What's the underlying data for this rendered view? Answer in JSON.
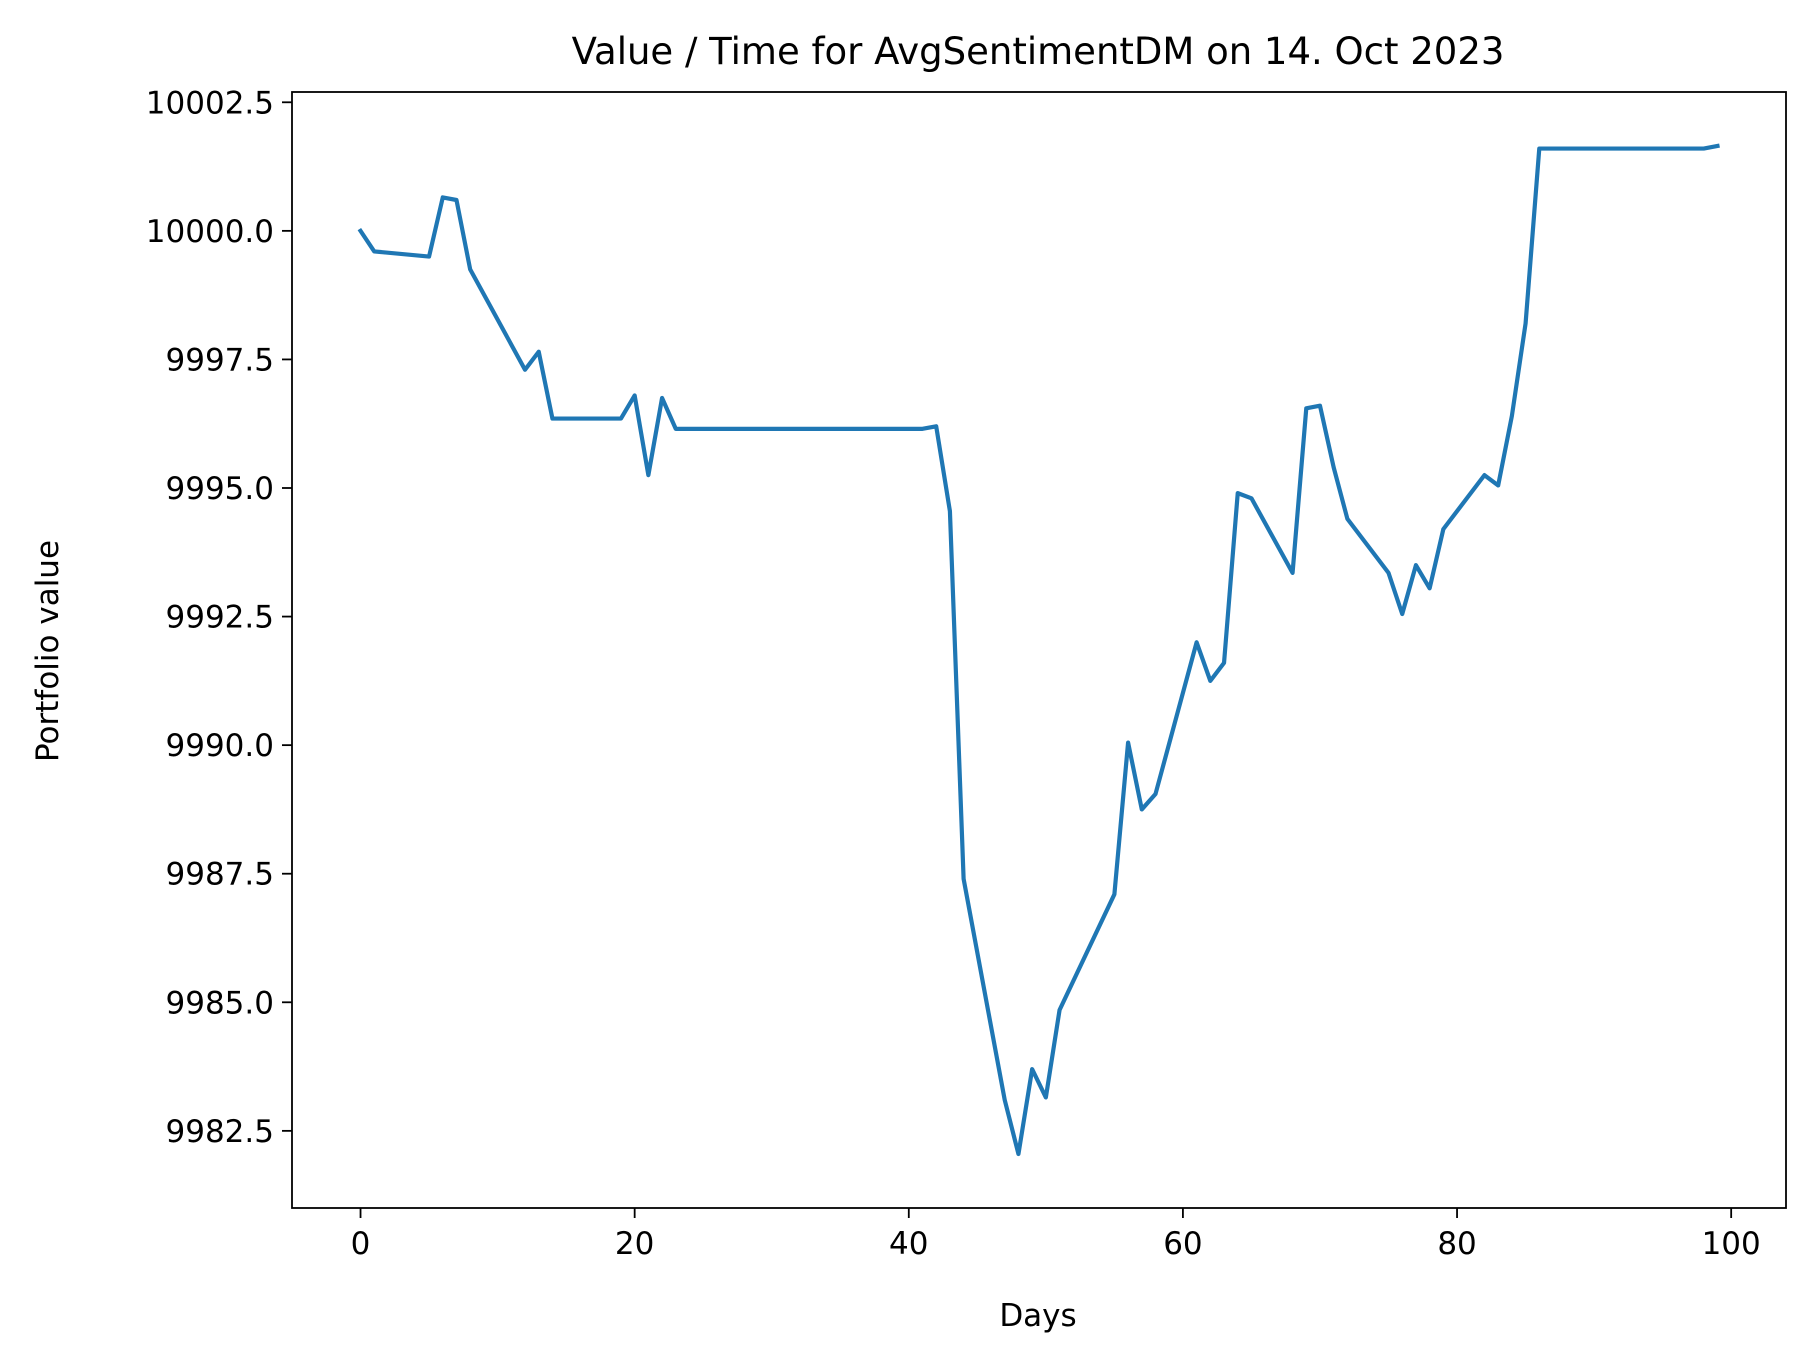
{
  "chart_data": {
    "type": "line",
    "title": "Value / Time for AvgSentimentDM on 14. Oct 2023",
    "xlabel": "Days",
    "ylabel": "Portfolio value",
    "xlim": [
      -5,
      104
    ],
    "ylim": [
      9981.0,
      10002.7
    ],
    "xticks": [
      0,
      20,
      40,
      60,
      80,
      100
    ],
    "yticks": [
      9982.5,
      9985.0,
      9987.5,
      9990.0,
      9992.5,
      9995.0,
      9997.5,
      10000.0,
      10002.5
    ],
    "xtick_labels": [
      "0",
      "20",
      "40",
      "60",
      "80",
      "100"
    ],
    "ytick_labels": [
      "9982.5",
      "9985.0",
      "9987.5",
      "9990.0",
      "9992.5",
      "9995.0",
      "9997.5",
      "10000.0",
      "10002.5"
    ],
    "grid": false,
    "line_color": "#1f77b4",
    "series": [
      {
        "x": [
          0,
          1,
          5,
          6,
          7,
          8,
          12,
          13,
          14,
          19,
          20,
          21,
          22,
          23,
          27,
          41,
          42,
          43,
          44,
          47,
          48,
          49,
          50,
          51,
          55,
          56,
          57,
          58,
          61,
          62,
          63,
          64,
          65,
          68,
          69,
          70,
          71,
          72,
          75,
          76,
          77,
          78,
          79,
          82,
          83,
          84,
          85,
          86,
          90,
          98,
          99
        ],
        "y": [
          10000.0,
          9999.6,
          9999.5,
          10000.65,
          10000.6,
          9999.25,
          9997.3,
          9997.65,
          9996.35,
          9996.35,
          9996.8,
          9995.25,
          9996.75,
          9996.15,
          9996.15,
          9996.15,
          9996.2,
          9994.55,
          9987.4,
          9983.1,
          9982.05,
          9983.7,
          9983.15,
          9984.85,
          9987.1,
          9990.05,
          9988.75,
          9989.05,
          9992.0,
          9991.25,
          9991.6,
          9994.9,
          9994.8,
          9993.35,
          9996.55,
          9996.6,
          9995.4,
          9994.4,
          9993.35,
          9992.55,
          9993.5,
          9993.05,
          9994.2,
          9995.25,
          9995.05,
          9996.4,
          9998.2,
          10001.6,
          10001.6,
          10001.6,
          10001.65
        ]
      }
    ]
  }
}
